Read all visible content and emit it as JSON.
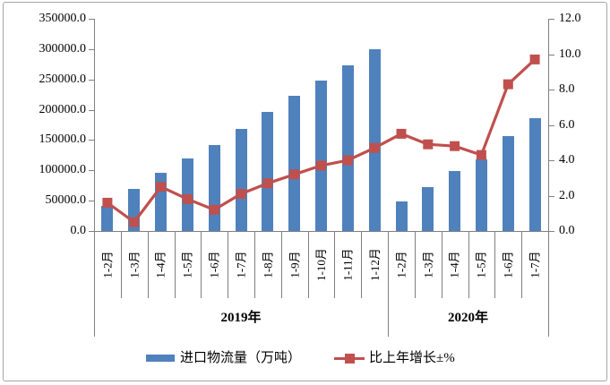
{
  "chart_data": {
    "type": "bar",
    "subtype": "combo-bar-line-dual-axis",
    "title": "",
    "categories": [
      "1-2月",
      "1-3月",
      "1-4月",
      "1-5月",
      "1-6月",
      "1-7月",
      "1-8月",
      "1-9月",
      "1-10月",
      "1-11月",
      "1-12月",
      "1-2月",
      "1-3月",
      "1-4月",
      "1-5月",
      "1-6月",
      "1-7月"
    ],
    "year_groups": [
      {
        "label": "2019年",
        "span": 11
      },
      {
        "label": "2020年",
        "span": 6
      }
    ],
    "series": [
      {
        "name": "进口物流量（万吨）",
        "type": "bar",
        "axis": "left",
        "color": "#4f81bd",
        "values": [
          42000,
          70000,
          96000,
          120000,
          142000,
          168000,
          196000,
          223000,
          248000,
          273000,
          300000,
          49000,
          72000,
          99000,
          118000,
          156000,
          186000
        ]
      },
      {
        "name": "比上年增长±%",
        "type": "line",
        "axis": "right",
        "color": "#c0504d",
        "values": [
          1.6,
          0.5,
          2.5,
          1.8,
          1.2,
          2.1,
          2.7,
          3.2,
          3.7,
          4.0,
          4.7,
          5.5,
          4.9,
          4.8,
          4.3,
          8.3,
          9.7
        ]
      }
    ],
    "left_axis": {
      "min": 0,
      "max": 350000,
      "step": 50000,
      "tick_labels": [
        "0.0",
        "50000.0",
        "100000.0",
        "150000.0",
        "200000.0",
        "250000.0",
        "300000.0",
        "350000.0"
      ]
    },
    "right_axis": {
      "min": 0,
      "max": 12,
      "step": 2,
      "tick_labels": [
        "0.0",
        "2.0",
        "4.0",
        "6.0",
        "8.0",
        "10.0",
        "12.0"
      ]
    },
    "grid": false,
    "legend_position": "bottom"
  },
  "colors": {
    "bar": "#4f81bd",
    "line": "#c0504d",
    "axis": "#808080",
    "frame_border": "#a6a6a6",
    "text": "#000000"
  }
}
